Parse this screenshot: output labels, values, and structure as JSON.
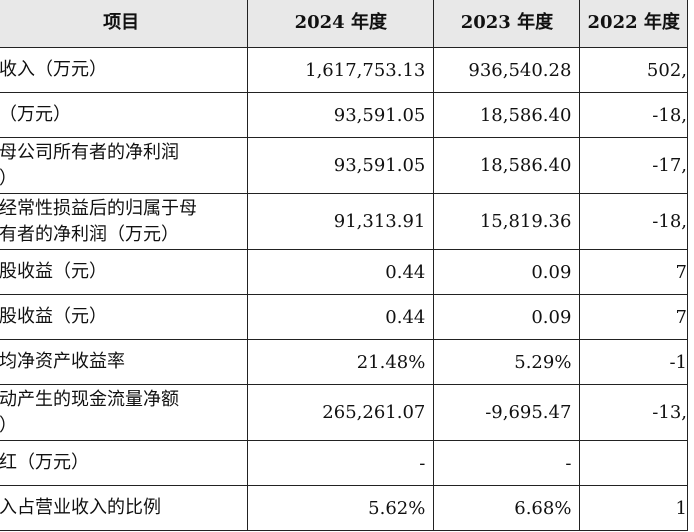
{
  "header": [
    "项目",
    "2024 年度",
    "2023 年度",
    "2022 年度"
  ],
  "rows": [
    {
      "label": [
        "收入（万元）"
      ],
      "v2024": "1,617,753.13",
      "v2023": "936,540.28",
      "v2022": "502,"
    },
    {
      "label": [
        "（万元）"
      ],
      "v2024": "93,591.05",
      "v2023": "18,586.40",
      "v2022": "-18,"
    },
    {
      "label": [
        "母公司所有者的净利润",
        "）"
      ],
      "v2024": "93,591.05",
      "v2023": "18,586.40",
      "v2022": "-17,"
    },
    {
      "label": [
        "经常性损益后的归属于母",
        "有者的净利润（万元）"
      ],
      "v2024": "91,313.91",
      "v2023": "15,819.36",
      "v2022": "-18,"
    },
    {
      "label": [
        "股收益（元）"
      ],
      "v2024": "0.44",
      "v2023": "0.09",
      "v2022": "7"
    },
    {
      "label": [
        "股收益（元）"
      ],
      "v2024": "0.44",
      "v2023": "0.09",
      "v2022": "7"
    },
    {
      "label": [
        "均净资产收益率"
      ],
      "v2024": "21.48%",
      "v2023": "5.29%",
      "v2022": "-1"
    },
    {
      "label": [
        "动产生的现金流量净额",
        "）"
      ],
      "v2024": "265,261.07",
      "v2023": "-9,695.47",
      "v2022": "-13,"
    },
    {
      "label": [
        "红（万元）"
      ],
      "v2024": "-",
      "v2023": "-",
      "v2022": ""
    },
    {
      "label": [
        "入占营业收入的比例"
      ],
      "v2024": "5.62%",
      "v2023": "6.68%",
      "v2022": "1"
    }
  ]
}
